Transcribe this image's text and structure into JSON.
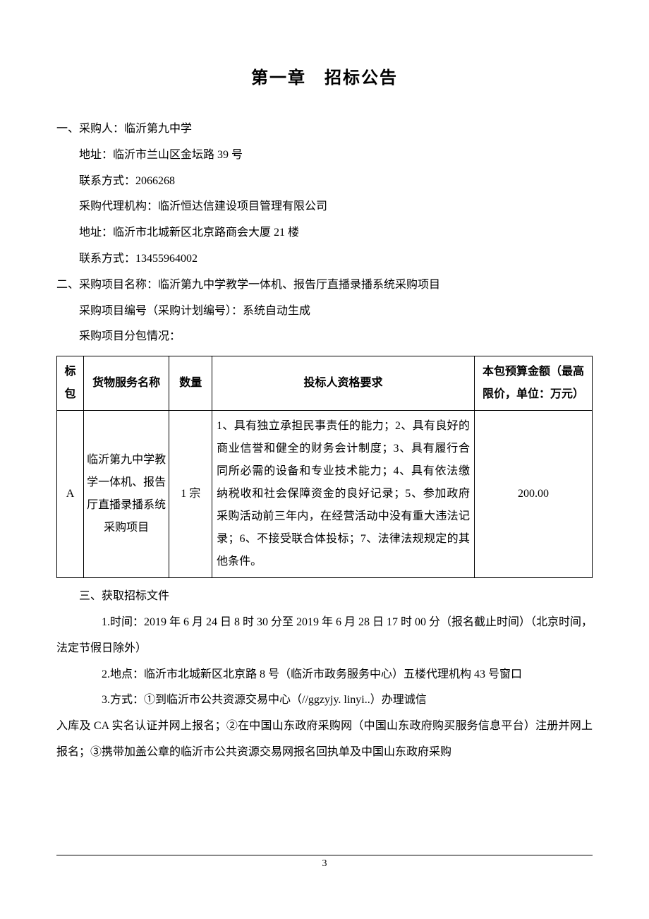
{
  "chapter_title": "第一章　招标公告",
  "section1": {
    "heading": "一、采购人：临沂第九中学",
    "lines": [
      "地址：临沂市兰山区金坛路 39 号",
      "联系方式：2066268",
      "采购代理机构：临沂恒达信建设项目管理有限公司",
      "地址：临沂市北城新区北京路商会大厦 21 楼",
      "联系方式：13455964002"
    ]
  },
  "section2": {
    "heading": "二、采购项目名称：临沂第九中学教学一体机、报告厅直播录播系统采购项目",
    "lines": [
      "采购项目编号（采购计划编号）：系统自动生成",
      "采购项目分包情况："
    ]
  },
  "table": {
    "columns": [
      "标包",
      "货物服务名称",
      "数量",
      "投标人资格要求",
      "本包预算金额（最高限价，单位：万元）"
    ],
    "col_widths": [
      "5%",
      "16%",
      "8%",
      "49%",
      "22%"
    ],
    "rows": [
      {
        "pkg": "A",
        "name": "临沂第九中学教学一体机、报告厅直播录播系统采购项目",
        "qty": "1 宗",
        "req": "1、具有独立承担民事责任的能力；2、具有良好的商业信誉和健全的财务会计制度；3、具有履行合同所必需的设备和专业技术能力；4、具有依法缴纳税收和社会保障资金的良好记录；5、参加政府采购活动前三年内，在经营活动中没有重大违法记录；6、不接受联合体投标；7、法律法规规定的其他条件。",
        "budget": "200.00"
      }
    ]
  },
  "section3": {
    "heading": "三、获取招标文件",
    "p1": "1.时间：2019 年 6 月 24 日 8 时 30 分至 2019 年 6 月 28 日 17 时 00 分（报名截止时间）（北京时间，法定节假日除外）",
    "p2": "2.地点：临沂市北城新区北京路 8 号（临沂市政务服务中心）五楼代理机构 43 号窗口",
    "p3a": "3.方式：①到临沂市公共资源交易中心（//ggzyjy. linyi..）办理诚信",
    "p3b": "入库及 CA 实名认证并网上报名；②在中国山东政府采购网（中国山东政府购买服务信息平台）注册并网上报名；③携带加盖公章的临沂市公共资源交易网报名回执单及中国山东政府采购"
  },
  "page_number": "3"
}
